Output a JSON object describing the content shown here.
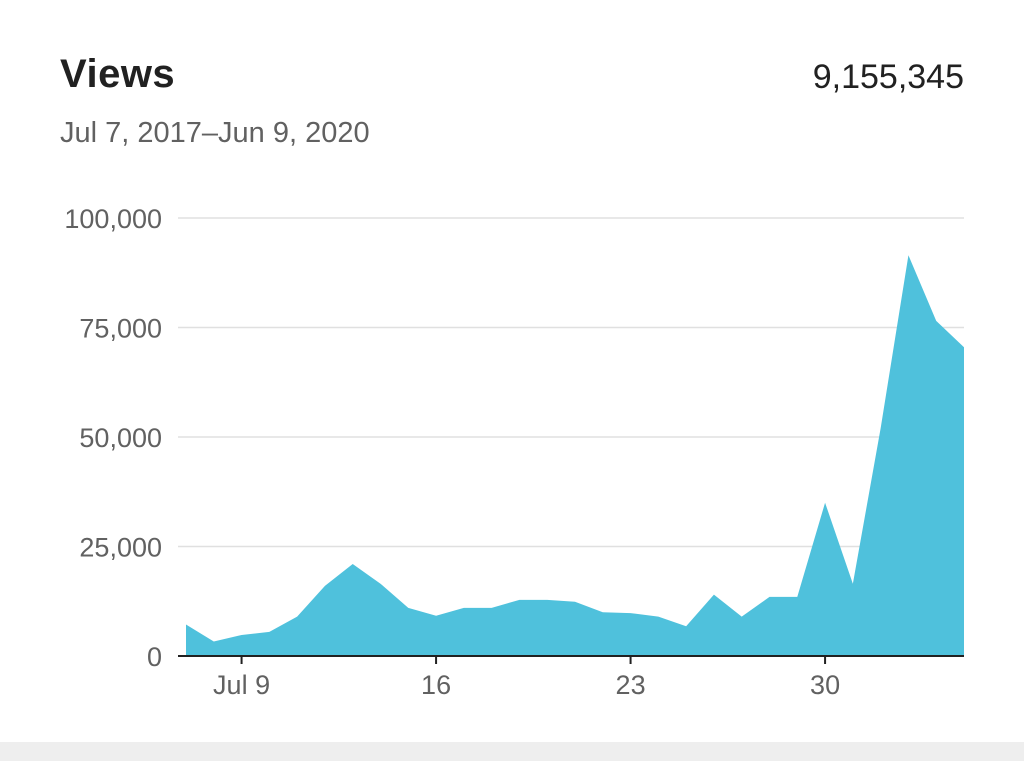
{
  "header": {
    "title": "Views",
    "total": "9,155,345",
    "date_range": "Jul 7, 2017–Jun 9, 2020"
  },
  "colors": {
    "area_fill": "#4fc1dc",
    "grid": "#e0e0e0",
    "axis": "#212121",
    "text": "#616161"
  },
  "chart_data": {
    "type": "area",
    "title": "Views",
    "xlabel": "",
    "ylabel": "",
    "x": [
      "Jul 7",
      "Jul 8",
      "Jul 9",
      "Jul 10",
      "Jul 11",
      "Jul 12",
      "Jul 13",
      "Jul 14",
      "Jul 15",
      "Jul 16",
      "Jul 17",
      "Jul 18",
      "Jul 19",
      "Jul 20",
      "Jul 21",
      "Jul 22",
      "Jul 23",
      "Jul 24",
      "Jul 25",
      "Jul 26",
      "Jul 27",
      "Jul 28",
      "Jul 29",
      "Jul 30",
      "Jul 31",
      "Aug 1",
      "Aug 2",
      "Aug 3",
      "Aug 4"
    ],
    "values": [
      7200,
      3300,
      4800,
      5500,
      9000,
      16000,
      21000,
      16500,
      11000,
      9200,
      11000,
      11000,
      12800,
      12800,
      12400,
      10000,
      9800,
      9000,
      6800,
      14000,
      9000,
      13500,
      13500,
      35000,
      16500,
      52000,
      91500,
      76500,
      70500
    ],
    "x_ticks": [
      {
        "index": 2,
        "label": "Jul 9"
      },
      {
        "index": 9,
        "label": "16"
      },
      {
        "index": 16,
        "label": "23"
      },
      {
        "index": 23,
        "label": "30"
      }
    ],
    "y_ticks": [
      {
        "value": 0,
        "label": "0"
      },
      {
        "value": 25000,
        "label": "25,000"
      },
      {
        "value": 50000,
        "label": "50,000"
      },
      {
        "value": 75000,
        "label": "75,000"
      },
      {
        "value": 100000,
        "label": "100,000"
      }
    ],
    "ylim": [
      0,
      100000
    ],
    "grid": true,
    "legend": "none"
  }
}
